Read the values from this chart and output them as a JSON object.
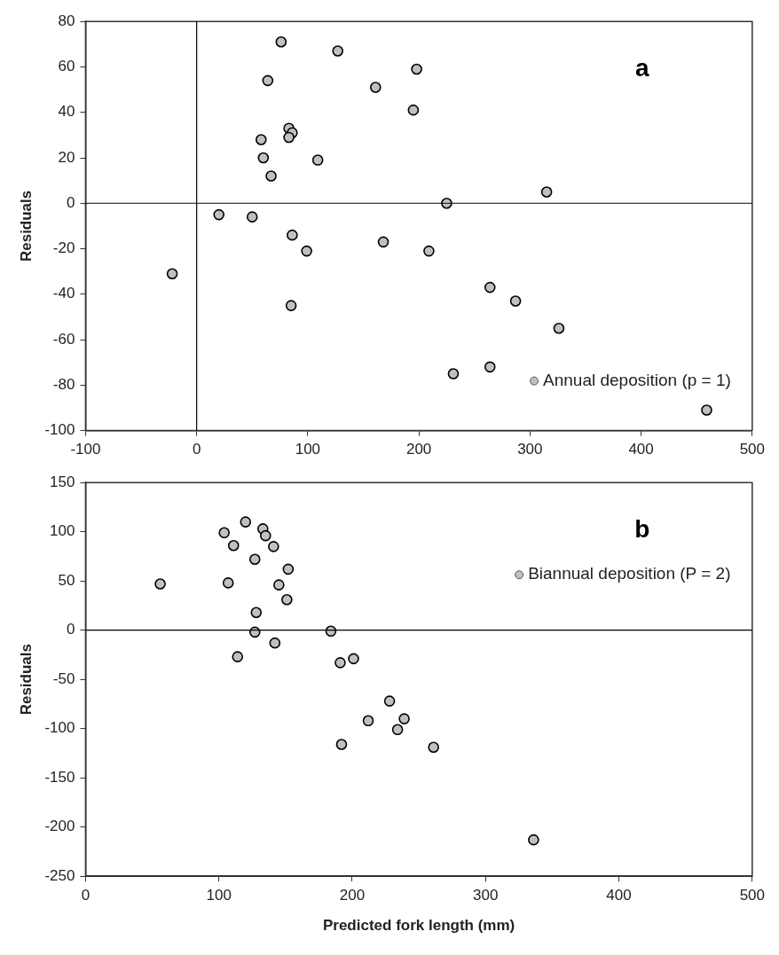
{
  "chart_data": [
    {
      "type": "scatter",
      "ylabel": "Residuals",
      "annotations": [
        "a"
      ],
      "xlim": [
        -100,
        500
      ],
      "xticks": [
        -100,
        0,
        100,
        200,
        300,
        400,
        500
      ],
      "ylim": [
        -100,
        80
      ],
      "yticks": [
        -100,
        -80,
        -60,
        -40,
        -20,
        0,
        20,
        40,
        60,
        80
      ],
      "grid": false,
      "legend": "bottom right",
      "marker": "circle",
      "ref_lines": [
        {
          "axis": "x",
          "value": 0,
          "color": "#000000"
        },
        {
          "axis": "y",
          "value": 0,
          "color": "#000000"
        }
      ],
      "series": [
        {
          "name": "Annual deposition (p = 1)",
          "color": "#c0c0c0",
          "x": [
            76,
            127,
            64,
            198,
            161,
            195,
            83,
            86,
            83,
            58,
            60,
            109,
            67,
            225,
            315,
            20,
            50,
            86,
            99,
            168,
            209,
            -22,
            264,
            287,
            85,
            326,
            231,
            264,
            459
          ],
          "values": [
            71,
            67,
            54,
            59,
            51,
            41,
            33,
            31,
            29,
            28,
            20,
            19,
            12,
            0,
            5,
            -5,
            -6,
            -14,
            -21,
            -17,
            -21,
            -31,
            -37,
            -43,
            -45,
            -55,
            -75,
            -72,
            -91
          ]
        }
      ]
    },
    {
      "type": "scatter",
      "xlabel": "Predicted fork length (mm)",
      "ylabel": "Residuals",
      "annotations": [
        "b"
      ],
      "xlim": [
        0,
        500
      ],
      "xticks": [
        0,
        100,
        200,
        300,
        400,
        500
      ],
      "ylim": [
        -250,
        150
      ],
      "yticks": [
        -250,
        -200,
        -150,
        -100,
        -50,
        0,
        50,
        100,
        150
      ],
      "grid": false,
      "legend": "top right",
      "marker": "circle",
      "ref_lines": [
        {
          "axis": "y",
          "value": 0,
          "color": "#000000"
        }
      ],
      "series": [
        {
          "name": "Biannual deposition (P = 2)",
          "color": "#c0c0c0",
          "x": [
            56,
            104,
            120,
            111,
            133,
            135,
            137,
            139,
            141,
            127,
            152,
            107,
            145,
            151,
            128,
            127,
            184,
            142,
            114,
            191,
            201,
            228,
            212,
            239,
            234,
            192,
            261,
            336
          ],
          "values": [
            47,
            99,
            110,
            86,
            103,
            96,
            null,
            null,
            85,
            72,
            62,
            48,
            46,
            31,
            18,
            -2,
            -1,
            -13,
            -27,
            -33,
            -29,
            -72,
            -92,
            -90,
            -101,
            -116,
            -119,
            -213
          ]
        }
      ]
    }
  ]
}
